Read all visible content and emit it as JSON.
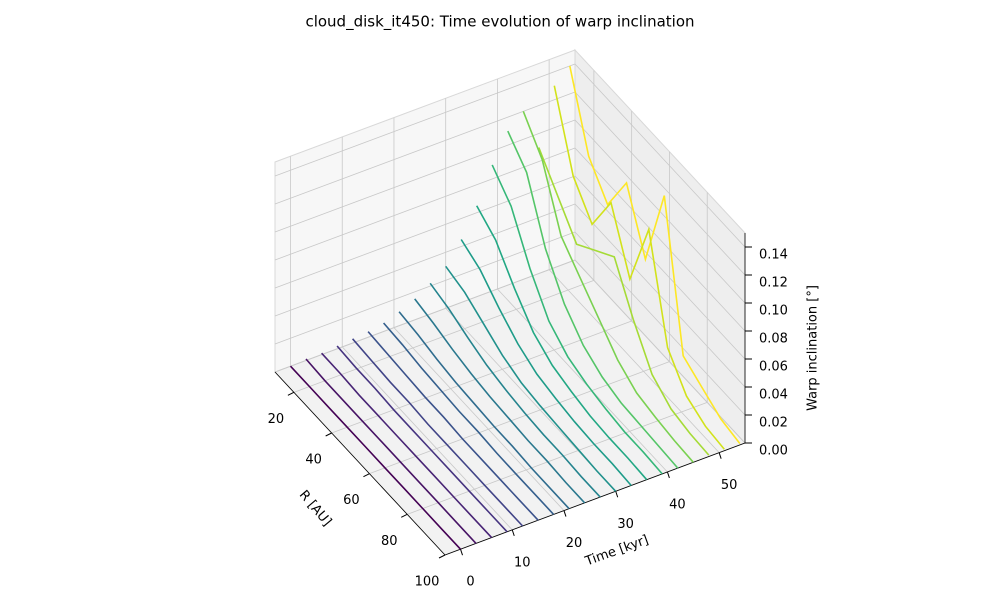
{
  "chart_data": {
    "type": "line3d",
    "title": "cloud_disk_it450: Time evolution of warp inclination",
    "xlabel": "R [AU]",
    "ylabel": "Time [kyr]",
    "zlabel": "Warp inclination [°]",
    "x": [
      10,
      20,
      30,
      40,
      50,
      60,
      70,
      80,
      90,
      100
    ],
    "times": [
      0,
      3,
      6,
      9,
      12,
      15,
      18,
      21,
      24,
      27,
      30,
      33,
      36,
      39,
      42,
      45,
      48,
      51,
      54
    ],
    "series": [
      {
        "color": "#440154",
        "values": [
          0,
          0,
          0,
          0,
          0,
          0,
          0,
          0,
          0,
          0
        ]
      },
      {
        "color": "#471365",
        "values": [
          0.001,
          0,
          0,
          0,
          0,
          0,
          0,
          0,
          0,
          0
        ]
      },
      {
        "color": "#482475",
        "values": [
          0.001,
          0.001,
          0,
          0,
          0,
          0,
          0,
          0,
          0,
          0
        ]
      },
      {
        "color": "#463480",
        "values": [
          0.002,
          0.001,
          0.001,
          0,
          0,
          0,
          0,
          0,
          0,
          0
        ]
      },
      {
        "color": "#414487",
        "values": [
          0.003,
          0.002,
          0.001,
          0.001,
          0,
          0,
          0,
          0,
          0,
          0
        ]
      },
      {
        "color": "#3b528b",
        "values": [
          0.004,
          0.003,
          0.002,
          0.001,
          0.001,
          0,
          0,
          0,
          0,
          0
        ]
      },
      {
        "color": "#355f8d",
        "values": [
          0.006,
          0.005,
          0.003,
          0.002,
          0.001,
          0.001,
          0,
          0,
          0,
          0
        ]
      },
      {
        "color": "#2f6c8e",
        "values": [
          0.01,
          0.008,
          0.005,
          0.003,
          0.002,
          0.001,
          0.001,
          0,
          0,
          0
        ]
      },
      {
        "color": "#2a788e",
        "values": [
          0.015,
          0.012,
          0.008,
          0.005,
          0.003,
          0.002,
          0.001,
          0.001,
          0,
          0
        ]
      },
      {
        "color": "#25848e",
        "values": [
          0.022,
          0.018,
          0.012,
          0.007,
          0.004,
          0.002,
          0.001,
          0.001,
          0,
          0
        ]
      },
      {
        "color": "#21918c",
        "values": [
          0.03,
          0.026,
          0.018,
          0.01,
          0.005,
          0.003,
          0.002,
          0.001,
          0,
          0
        ]
      },
      {
        "color": "#1e9c89",
        "values": [
          0.045,
          0.038,
          0.025,
          0.014,
          0.007,
          0.004,
          0.002,
          0.001,
          0.001,
          0
        ]
      },
      {
        "color": "#22a884",
        "values": [
          0.065,
          0.055,
          0.035,
          0.018,
          0.009,
          0.005,
          0.002,
          0.001,
          0.001,
          0
        ]
      },
      {
        "color": "#35b779",
        "values": [
          0.09,
          0.075,
          0.045,
          0.022,
          0.011,
          0.006,
          0.003,
          0.001,
          0.001,
          0
        ]
      },
      {
        "color": "#54c568",
        "values": [
          0.11,
          0.095,
          0.055,
          0.03,
          0.015,
          0.007,
          0.003,
          0.002,
          0.001,
          0
        ]
      },
      {
        "color": "#7ad151",
        "values": [
          0.12,
          0.1,
          0.06,
          0.045,
          0.03,
          0.015,
          0.006,
          0.003,
          0.001,
          0
        ]
      },
      {
        "color": "#a5db36",
        "values": [
          0.09,
          0.07,
          0.05,
          0.06,
          0.07,
          0.04,
          0.015,
          0.005,
          0.002,
          0.001
        ]
      },
      {
        "color": "#d2e21b",
        "values": [
          0.13,
          0.08,
          0.06,
          0.09,
          0.05,
          0.1,
          0.03,
          0.01,
          0.003,
          0.001
        ]
      },
      {
        "color": "#fde725",
        "values": [
          0.14,
          0.09,
          0.07,
          0.1,
          0.06,
          0.12,
          0.02,
          0.012,
          0.004,
          0.001
        ]
      }
    ],
    "xlim": [
      10,
      100
    ],
    "xticks": [
      20,
      40,
      60,
      80,
      100
    ],
    "ylim": [
      -3,
      55
    ],
    "yticks": [
      0,
      10,
      20,
      30,
      40,
      50
    ],
    "zlim": [
      0,
      0.15
    ],
    "zticks": [
      {
        "value": 0,
        "label": "0.00"
      },
      {
        "value": 0.02,
        "label": "0.02"
      },
      {
        "value": 0.04,
        "label": "0.04"
      },
      {
        "value": 0.06,
        "label": "0.06"
      },
      {
        "value": 0.08,
        "label": "0.08"
      },
      {
        "value": 0.1,
        "label": "0.10"
      },
      {
        "value": 0.12,
        "label": "0.12"
      },
      {
        "value": 0.14,
        "label": "0.14"
      }
    ],
    "grid": true
  }
}
